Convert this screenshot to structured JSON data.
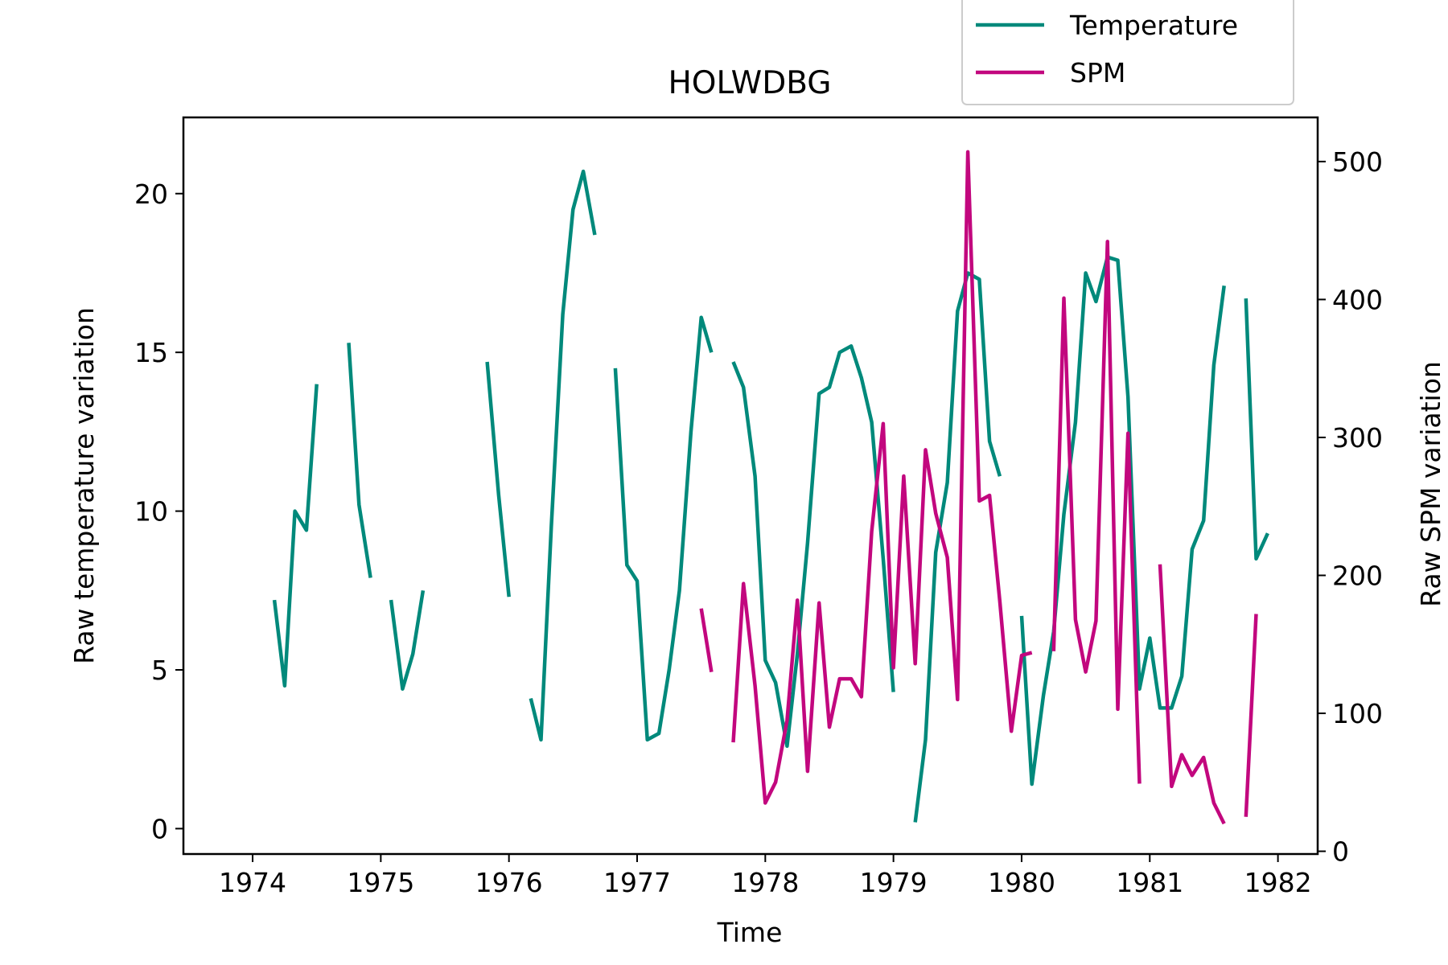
{
  "chart_data": {
    "type": "line",
    "title": "HOLWDBG",
    "xlabel": "Time",
    "ylabel_left": "Raw temperature variation",
    "ylabel_right": "Raw SPM variation",
    "xlim": [
      1973.46,
      1982.31
    ],
    "ylim_left": [
      -0.8,
      22.4
    ],
    "ylim_right": [
      -2,
      532
    ],
    "x_ticks": [
      1974,
      1975,
      1976,
      1977,
      1978,
      1979,
      1980,
      1981,
      1982
    ],
    "y_left_ticks": [
      0,
      5,
      10,
      15,
      20
    ],
    "y_right_ticks": [
      0,
      100,
      200,
      300,
      400,
      500
    ],
    "grid": false,
    "legend_position": "top-right, outside above plot",
    "series": [
      {
        "name": "Temperature",
        "axis": "left",
        "color": "#00897B",
        "segments": [
          [
            [
              1974.17,
              7.2
            ],
            [
              1974.25,
              4.5
            ],
            [
              1974.33,
              10.0
            ],
            [
              1974.42,
              9.4
            ],
            [
              1974.5,
              14.0
            ]
          ],
          [
            [
              1974.75,
              15.3
            ],
            [
              1974.83,
              10.2
            ],
            [
              1974.92,
              7.9
            ]
          ],
          [
            [
              1975.08,
              7.2
            ],
            [
              1975.17,
              4.4
            ],
            [
              1975.25,
              5.5
            ],
            [
              1975.33,
              7.5
            ]
          ],
          [
            [
              1975.83,
              14.7
            ],
            [
              1975.92,
              10.5
            ],
            [
              1976.0,
              7.3
            ]
          ],
          [
            [
              1976.17,
              4.1
            ],
            [
              1976.25,
              2.8
            ],
            [
              1976.33,
              9.5
            ],
            [
              1976.42,
              16.2
            ],
            [
              1976.5,
              19.5
            ],
            [
              1976.58,
              20.7
            ],
            [
              1976.67,
              18.7
            ]
          ],
          [
            [
              1976.83,
              14.5
            ],
            [
              1976.92,
              8.3
            ],
            [
              1977.0,
              7.8
            ],
            [
              1977.08,
              2.8
            ],
            [
              1977.17,
              3.0
            ],
            [
              1977.25,
              5.0
            ],
            [
              1977.33,
              7.5
            ],
            [
              1977.42,
              12.5
            ],
            [
              1977.5,
              16.1
            ],
            [
              1977.58,
              15.0
            ]
          ],
          [
            [
              1977.75,
              14.7
            ],
            [
              1977.83,
              13.9
            ],
            [
              1977.92,
              11.1
            ],
            [
              1978.0,
              5.3
            ],
            [
              1978.08,
              4.6
            ],
            [
              1978.17,
              2.6
            ],
            [
              1978.25,
              5.5
            ],
            [
              1978.33,
              9.0
            ],
            [
              1978.42,
              13.7
            ],
            [
              1978.5,
              13.9
            ],
            [
              1978.58,
              15.0
            ],
            [
              1978.67,
              15.2
            ],
            [
              1978.75,
              14.2
            ],
            [
              1978.83,
              12.8
            ],
            [
              1978.92,
              8.5
            ],
            [
              1979.0,
              4.3
            ]
          ],
          [
            [
              1979.17,
              0.2
            ],
            [
              1979.25,
              2.8
            ],
            [
              1979.33,
              8.7
            ],
            [
              1979.42,
              10.9
            ],
            [
              1979.5,
              16.3
            ],
            [
              1979.58,
              17.5
            ],
            [
              1979.67,
              17.3
            ],
            [
              1979.75,
              12.2
            ],
            [
              1979.83,
              11.1
            ]
          ],
          [
            [
              1980.0,
              6.7
            ],
            [
              1980.08,
              1.4
            ],
            [
              1980.17,
              4.2
            ],
            [
              1980.25,
              6.2
            ],
            [
              1980.33,
              9.9
            ],
            [
              1980.42,
              12.8
            ],
            [
              1980.5,
              17.5
            ],
            [
              1980.58,
              16.6
            ],
            [
              1980.67,
              18.0
            ],
            [
              1980.75,
              17.9
            ],
            [
              1980.83,
              13.6
            ],
            [
              1980.92,
              4.4
            ],
            [
              1981.0,
              6.0
            ],
            [
              1981.08,
              3.8
            ],
            [
              1981.17,
              3.8
            ],
            [
              1981.25,
              4.8
            ],
            [
              1981.33,
              8.8
            ],
            [
              1981.42,
              9.7
            ],
            [
              1981.5,
              14.6
            ],
            [
              1981.58,
              17.1
            ]
          ],
          [
            [
              1981.75,
              16.7
            ],
            [
              1981.83,
              8.5
            ],
            [
              1981.92,
              9.3
            ]
          ]
        ]
      },
      {
        "name": "SPM",
        "axis": "right",
        "color": "#C2077E",
        "segments": [
          [
            [
              1977.5,
              176
            ],
            [
              1977.58,
              130
            ]
          ],
          [
            [
              1977.75,
              79
            ],
            [
              1977.83,
              194
            ],
            [
              1977.92,
              120
            ],
            [
              1978.0,
              35
            ],
            [
              1978.08,
              50
            ],
            [
              1978.17,
              95
            ],
            [
              1978.25,
              182
            ],
            [
              1978.33,
              58
            ],
            [
              1978.42,
              180
            ],
            [
              1978.5,
              90
            ],
            [
              1978.58,
              125
            ],
            [
              1978.67,
              125
            ],
            [
              1978.75,
              112
            ],
            [
              1978.83,
              232
            ],
            [
              1978.92,
              310
            ],
            [
              1979.0,
              133
            ],
            [
              1979.08,
              272
            ],
            [
              1979.17,
              136
            ],
            [
              1979.25,
              291
            ],
            [
              1979.33,
              245
            ],
            [
              1979.42,
              213
            ],
            [
              1979.5,
              110
            ],
            [
              1979.58,
              507
            ],
            [
              1979.67,
              254
            ],
            [
              1979.75,
              258
            ],
            [
              1979.83,
              181
            ],
            [
              1979.92,
              87
            ],
            [
              1980.0,
              142
            ],
            [
              1980.08,
              144
            ]
          ],
          [
            [
              1980.25,
              145
            ],
            [
              1980.33,
              401
            ],
            [
              1980.42,
              168
            ],
            [
              1980.5,
              130
            ],
            [
              1980.58,
              167
            ],
            [
              1980.67,
              442
            ],
            [
              1980.75,
              103
            ],
            [
              1980.83,
              303
            ],
            [
              1980.92,
              49
            ]
          ],
          [
            [
              1981.08,
              208
            ],
            [
              1981.17,
              47
            ],
            [
              1981.25,
              70
            ],
            [
              1981.33,
              55
            ],
            [
              1981.42,
              68
            ],
            [
              1981.5,
              35
            ],
            [
              1981.58,
              20
            ]
          ],
          [
            [
              1981.75,
              25
            ],
            [
              1981.83,
              172
            ]
          ]
        ]
      }
    ]
  }
}
